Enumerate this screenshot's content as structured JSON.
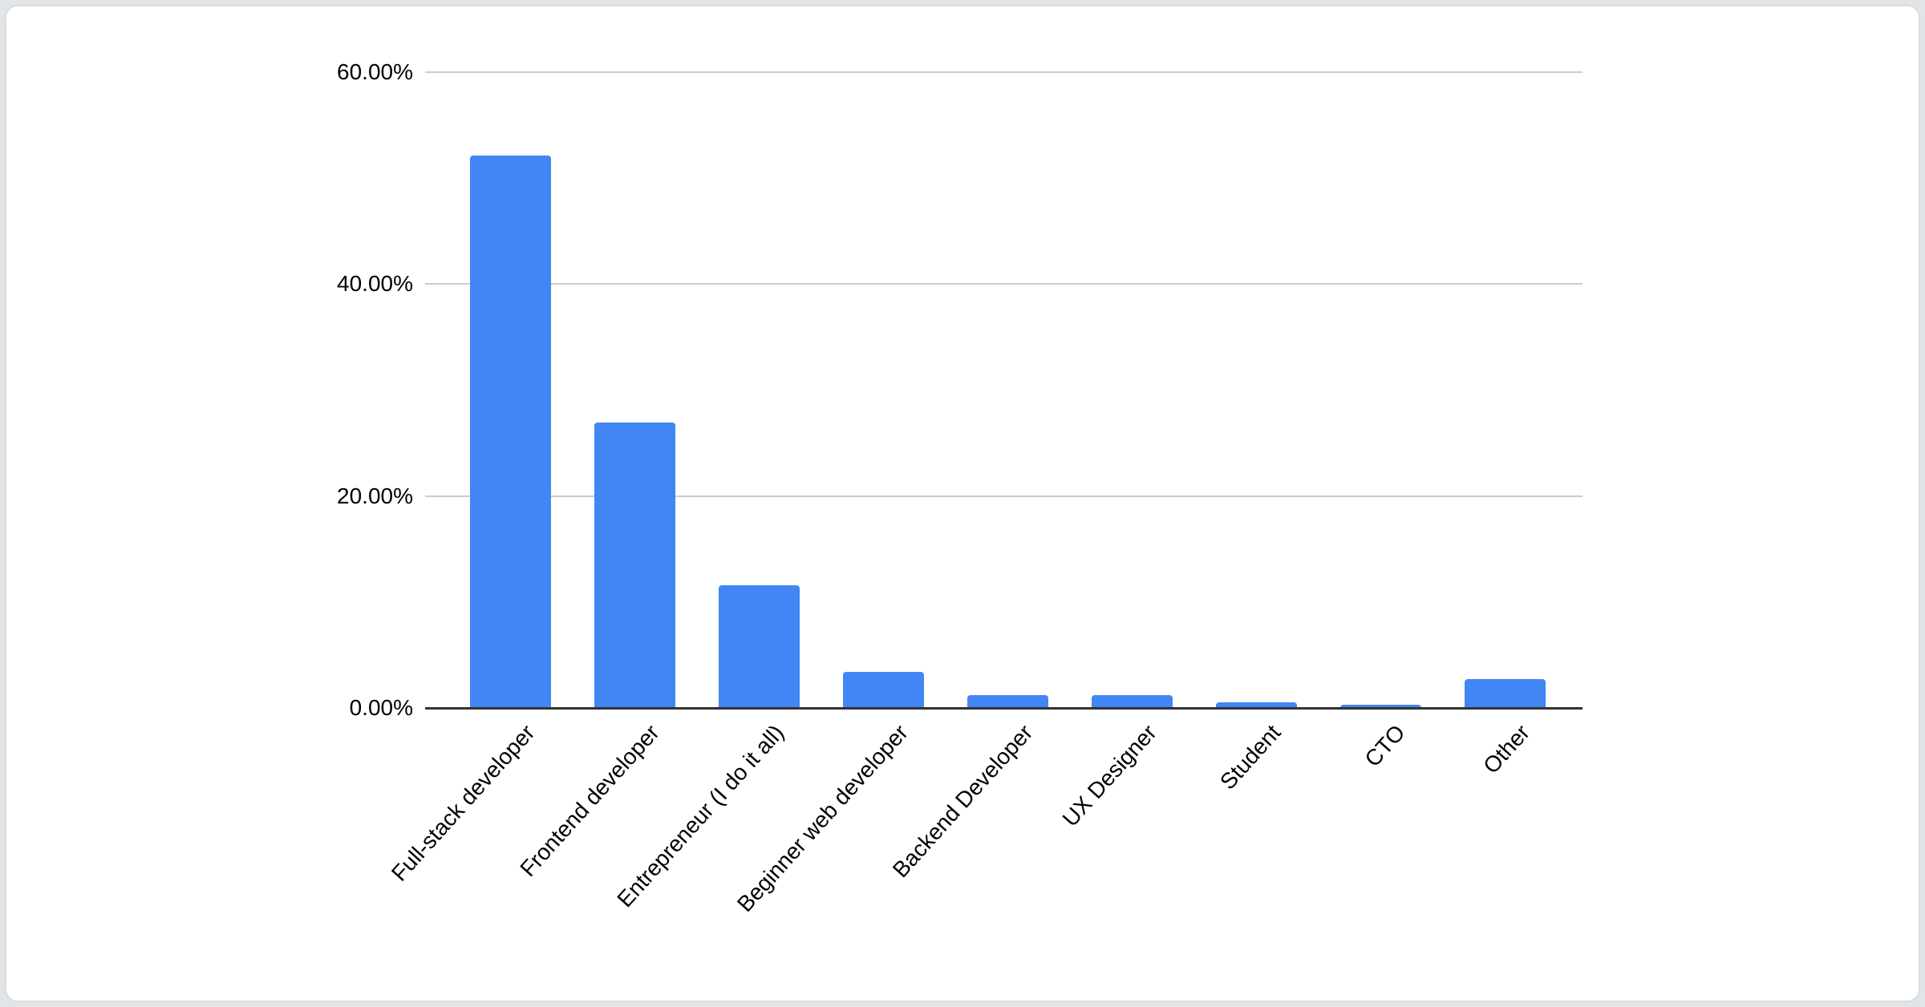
{
  "page": {
    "background_color": "#e2e5e8",
    "card_background_color": "#ffffff",
    "card_border_color": "#d9dcdf"
  },
  "chart_data": {
    "type": "bar",
    "title": "",
    "categories": [
      "Full-stack developer",
      "Frontend developer",
      "Entrepreneur (I do it all)",
      "Beginner web developer",
      "Backend Developer",
      "UX Designer",
      "Student",
      "CTO",
      "Other"
    ],
    "values": [
      52.1,
      26.9,
      11.6,
      3.4,
      1.2,
      1.2,
      0.5,
      0.3,
      2.7
    ],
    "value_unit": "percent",
    "xlabel": "",
    "ylabel": "",
    "ylim": [
      0,
      60
    ],
    "y_ticks": [
      {
        "value": 0,
        "label": "0.00%"
      },
      {
        "value": 20,
        "label": "20.00%"
      },
      {
        "value": 40,
        "label": "40.00%"
      },
      {
        "value": 60,
        "label": "60.00%"
      }
    ],
    "grid": true,
    "legend": "none",
    "x_label_rotation_deg": -48,
    "colors": {
      "bar": "#4285f4",
      "gridline": "#cccccc",
      "axis_line": "#333333",
      "tick_text": "#000000",
      "category_text": "#000000"
    }
  }
}
